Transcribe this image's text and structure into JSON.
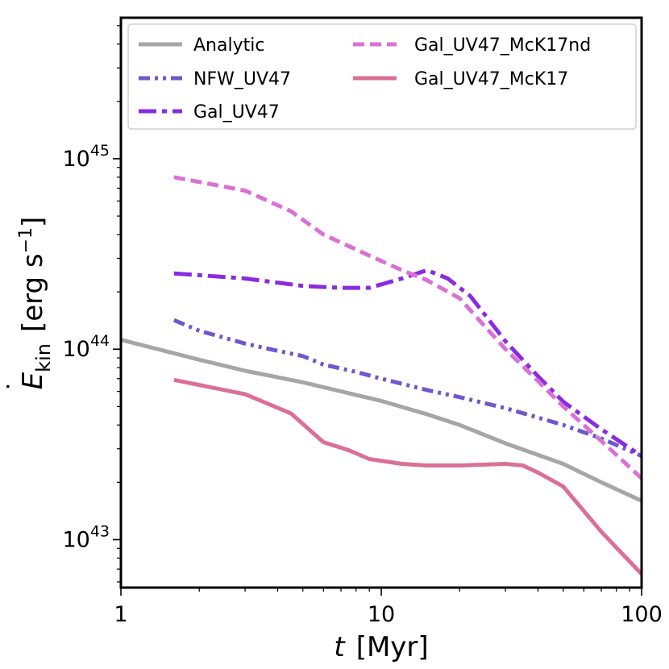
{
  "chart_data": {
    "type": "line",
    "title": "",
    "xlabel": "t [Myr]",
    "xlabel_parts": {
      "var": "t",
      "unit": "[Myr]"
    },
    "ylabel": "Ė_kin [erg s^-1]",
    "ylabel_parts": {
      "var": "E",
      "dot": "˙",
      "sub": "kin",
      "unit_open": "[erg s",
      "unit_exp": "−1",
      "unit_close": "]"
    },
    "xscale": "log",
    "yscale": "log",
    "xlim": [
      1,
      100
    ],
    "ylim": [
      5.6e+42,
      5.5e+45
    ],
    "x_ticks": [
      {
        "value": 1,
        "label": "1"
      },
      {
        "value": 10,
        "label": "10"
      },
      {
        "value": 100,
        "label": "100"
      }
    ],
    "y_ticks": [
      {
        "value": 1e+43,
        "base": "10",
        "exp": "43"
      },
      {
        "value": 1e+44,
        "base": "10",
        "exp": "44"
      },
      {
        "value": 1e+45,
        "base": "10",
        "exp": "45"
      }
    ],
    "legend_position": "top",
    "series": [
      {
        "name": "Analytic",
        "color": "#a6a6a6",
        "style": "solid",
        "x": [
          1,
          2,
          3,
          5,
          7,
          10,
          15,
          20,
          30,
          50,
          70,
          100
        ],
        "y": [
          1.12e+44,
          8.8e+43,
          7.7e+43,
          6.7e+43,
          6e+43,
          5.35e+43,
          4.55e+43,
          4e+43,
          3.2e+43,
          2.5e+43,
          2e+43,
          1.6e+43
        ]
      },
      {
        "name": "NFW_UV47",
        "color": "#6a5acd",
        "style": "dashdotdot",
        "x": [
          1.6,
          2,
          3,
          4,
          5,
          6,
          8,
          10,
          15,
          20,
          30,
          50,
          70,
          100
        ],
        "y": [
          1.42e+44,
          1.25e+44,
          1.07e+44,
          9.8e+43,
          9.2e+43,
          8.3e+43,
          7.6e+43,
          7e+43,
          6.1e+43,
          5.6e+43,
          4.9e+43,
          4e+43,
          3.4e+43,
          2.75e+43
        ]
      },
      {
        "name": "Gal_UV47",
        "color": "#8a2be2",
        "style": "dashdot",
        "x": [
          1.6,
          3,
          5,
          7,
          9,
          12,
          15,
          18,
          22,
          30,
          40,
          50,
          70,
          100
        ],
        "y": [
          2.5e+44,
          2.35e+44,
          2.15e+44,
          2.1e+44,
          2.1e+44,
          2.35e+44,
          2.6e+44,
          2.35e+44,
          1.9e+44,
          1.1e+44,
          7.2e+43,
          5.3e+43,
          3.8e+43,
          2.75e+43
        ]
      },
      {
        "name": "Gal_UV47_McK17nd",
        "color": "#da70d6",
        "style": "dashed",
        "x": [
          1.6,
          3,
          4.5,
          6,
          9,
          12,
          15,
          20,
          30,
          40,
          50,
          70,
          100
        ],
        "y": [
          8e+44,
          6.8e+44,
          5.3e+44,
          4e+44,
          3.1e+44,
          2.6e+44,
          2.3e+44,
          1.85e+44,
          1e+44,
          6.8e+43,
          5e+43,
          3.3e+43,
          2.1e+43
        ]
      },
      {
        "name": "Gal_UV47_McK17",
        "color": "#db7093",
        "style": "solid",
        "x": [
          1.6,
          3,
          4.5,
          6,
          7.5,
          9,
          12,
          15,
          20,
          30,
          35,
          40,
          50,
          70,
          100
        ],
        "y": [
          6.9e+43,
          5.8e+43,
          4.6e+43,
          3.25e+43,
          2.95e+43,
          2.65e+43,
          2.5e+43,
          2.45e+43,
          2.45e+43,
          2.5e+43,
          2.45e+43,
          2.25e+43,
          1.9e+43,
          1.1e+43,
          6.6e+42
        ]
      }
    ]
  }
}
